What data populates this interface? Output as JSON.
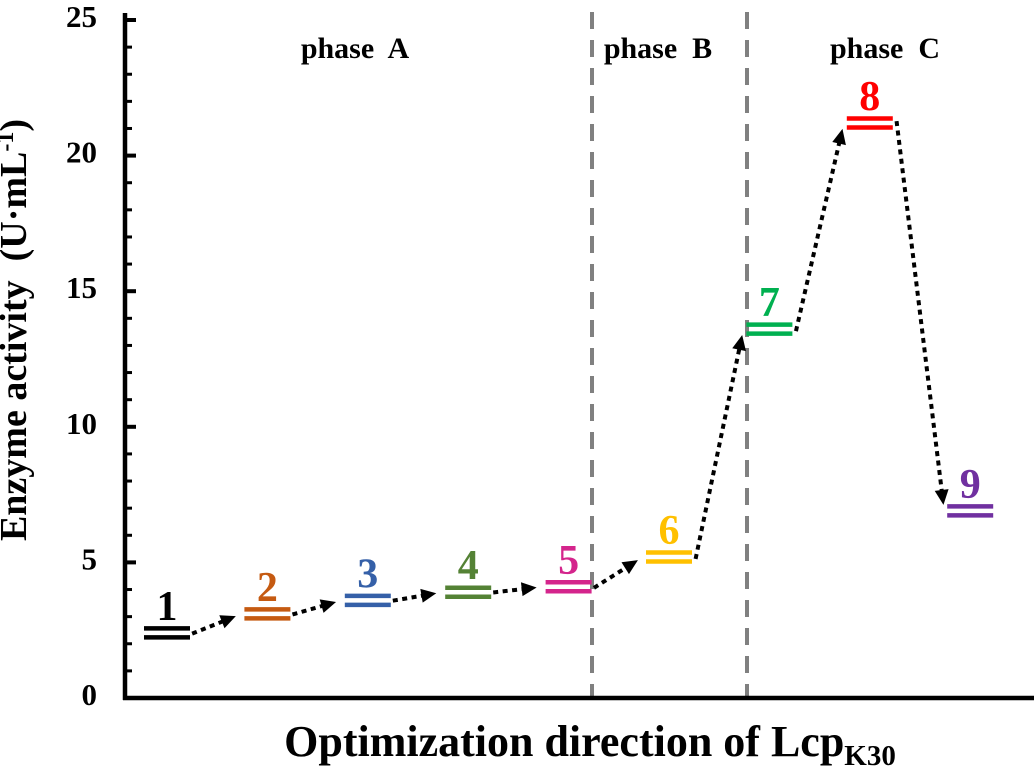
{
  "figure": {
    "background": "#ffffff",
    "axis_color": "#000000"
  },
  "chart_data": {
    "type": "line",
    "subtype": "step-level-progression",
    "title": "",
    "xlabel": {
      "main": "Optimization direction of Lcp",
      "subscript": "K30"
    },
    "ylabel": {
      "main": "Enzyme activity  (U·mL",
      "superscript": "-1",
      "close": ")"
    },
    "ylim": [
      0,
      25
    ],
    "y_major_ticks": [
      0,
      5,
      10,
      15,
      20,
      25
    ],
    "y_minor_tick_step": 1,
    "grid": false,
    "legend": false,
    "connector_style": "dotted-arrow",
    "connector_color": "#000000",
    "phase_divider_color": "#808080",
    "phases": [
      {
        "label": "phase  A",
        "steps": [
          1,
          2,
          3,
          4,
          5
        ]
      },
      {
        "label": "phase  B",
        "steps": [
          6,
          7
        ]
      },
      {
        "label": "phase  C",
        "steps": [
          8,
          9
        ]
      }
    ],
    "points": [
      {
        "step": "1",
        "value": 2.4,
        "color": "#000000"
      },
      {
        "step": "2",
        "value": 3.1,
        "color": "#C55A11"
      },
      {
        "step": "3",
        "value": 3.6,
        "color": "#3560A8"
      },
      {
        "step": "4",
        "value": 3.9,
        "color": "#548235"
      },
      {
        "step": "5",
        "value": 4.1,
        "color": "#D4258C"
      },
      {
        "step": "6",
        "value": 5.2,
        "color": "#FFC000"
      },
      {
        "step": "7",
        "value": 13.6,
        "color": "#00B050"
      },
      {
        "step": "8",
        "value": 21.2,
        "color": "#FF0000"
      },
      {
        "step": "9",
        "value": 6.9,
        "color": "#7030A0"
      }
    ],
    "units": "U·mL-1"
  }
}
